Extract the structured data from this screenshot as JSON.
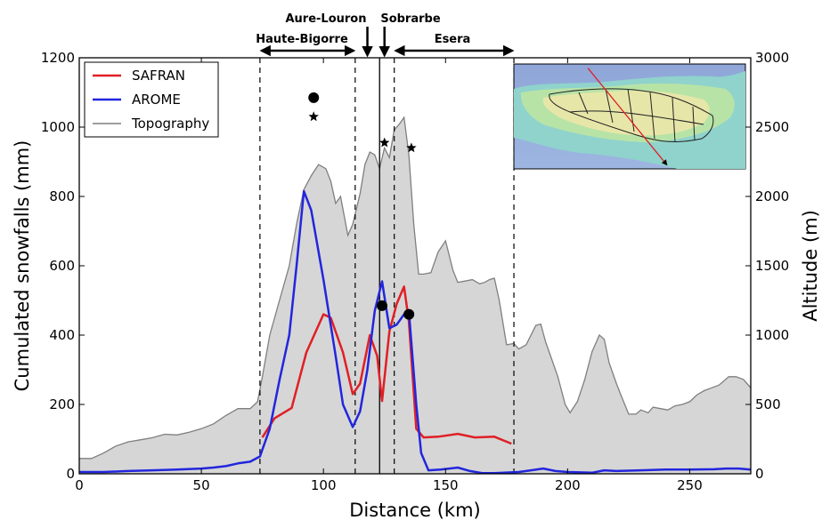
{
  "chart_data": {
    "type": "line",
    "xlabel": "Distance (km)",
    "ylabel": "Cumulated snowfalls (mm)",
    "y2label": "Altitude (m)",
    "xlim": [
      0,
      275
    ],
    "ylim": [
      0,
      1200
    ],
    "y2lim": [
      0,
      3000
    ],
    "xticks": [
      0,
      50,
      100,
      150,
      200,
      250
    ],
    "yticks": [
      0,
      200,
      400,
      600,
      800,
      1000,
      1200
    ],
    "y2ticks": [
      0,
      500,
      1000,
      1500,
      2000,
      2500,
      3000
    ],
    "legend_position": "top-left",
    "series": [
      {
        "name": "SAFRAN",
        "color": "#e01f26",
        "axis": "left",
        "x": [
          75,
          80,
          87,
          93,
          100,
          103,
          108,
          112,
          115,
          119,
          122,
          124,
          127,
          130,
          133,
          135,
          138,
          141,
          147,
          155,
          162,
          170,
          177
        ],
        "y": [
          105,
          160,
          190,
          350,
          460,
          450,
          350,
          230,
          260,
          400,
          340,
          210,
          410,
          490,
          540,
          440,
          130,
          105,
          107,
          115,
          105,
          107,
          87
        ]
      },
      {
        "name": "AROME",
        "color": "#2226dd",
        "axis": "left",
        "x": [
          0,
          10,
          20,
          30,
          40,
          50,
          55,
          60,
          65,
          70,
          74,
          78,
          82,
          86,
          89,
          92,
          95,
          100,
          105,
          108,
          112,
          115,
          118,
          121,
          124,
          127,
          130,
          133,
          135,
          138,
          140,
          143,
          148,
          155,
          160,
          165,
          170,
          180,
          185,
          190,
          195,
          200,
          210,
          215,
          220,
          230,
          240,
          250,
          260,
          265,
          270,
          275
        ],
        "y": [
          5,
          5,
          8,
          10,
          12,
          15,
          18,
          22,
          30,
          35,
          50,
          130,
          270,
          400,
          600,
          815,
          760,
          560,
          340,
          200,
          135,
          180,
          300,
          470,
          555,
          420,
          430,
          460,
          470,
          200,
          60,
          10,
          12,
          18,
          8,
          2,
          2,
          5,
          10,
          15,
          8,
          5,
          3,
          10,
          8,
          10,
          12,
          12,
          13,
          15,
          15,
          12
        ]
      },
      {
        "name": "Topography",
        "color": "#7f7f7f",
        "axis": "right",
        "x": [
          0,
          5,
          10,
          15,
          20,
          25,
          30,
          35,
          40,
          45,
          50,
          55,
          60,
          65,
          70,
          73,
          75,
          78,
          82,
          86,
          89,
          92,
          95,
          98,
          101,
          103,
          105,
          107,
          110,
          112,
          115,
          117,
          119,
          121,
          123,
          125,
          127,
          129,
          131,
          133,
          135,
          137,
          139,
          141,
          144,
          147,
          150,
          153,
          155,
          158,
          161,
          164,
          166,
          168,
          170,
          172,
          175,
          178,
          180,
          183,
          185,
          187,
          189,
          191,
          193,
          196,
          199,
          201,
          204,
          207,
          210,
          213,
          215,
          217,
          220,
          222,
          225,
          228,
          230,
          233,
          235,
          238,
          241,
          244,
          247,
          250,
          253,
          256,
          259,
          262,
          266,
          269,
          272,
          275
        ],
        "y": [
          110,
          110,
          150,
          200,
          230,
          245,
          260,
          285,
          280,
          300,
          325,
          360,
          420,
          470,
          470,
          520,
          700,
          1000,
          1250,
          1500,
          1800,
          2050,
          2150,
          2230,
          2200,
          2110,
          1950,
          2000,
          1720,
          1800,
          2020,
          2230,
          2320,
          2300,
          2200,
          2350,
          2280,
          2480,
          2520,
          2570,
          2300,
          1800,
          1440,
          1440,
          1450,
          1600,
          1680,
          1470,
          1380,
          1390,
          1400,
          1370,
          1380,
          1400,
          1410,
          1250,
          930,
          940,
          900,
          930,
          1000,
          1070,
          1080,
          950,
          850,
          700,
          500,
          440,
          520,
          680,
          880,
          1000,
          970,
          800,
          650,
          560,
          430,
          430,
          460,
          440,
          480,
          470,
          460,
          490,
          500,
          520,
          570,
          600,
          620,
          640,
          700,
          700,
          680,
          620
        ]
      }
    ],
    "observations": {
      "circles": [
        {
          "x": 96,
          "y": 1085
        },
        {
          "x": 124,
          "y": 485
        },
        {
          "x": 135,
          "y": 460
        }
      ],
      "stars": [
        {
          "x": 96,
          "y": 1030
        },
        {
          "x": 125,
          "y": 955
        },
        {
          "x": 136,
          "y": 940
        }
      ]
    },
    "dashed_lines_x": [
      74,
      113,
      129,
      178
    ],
    "solid_line_x": 123,
    "regions": [
      {
        "label": "Haute-Bigorre",
        "x_from": 74,
        "x_to": 113
      },
      {
        "label": "Aure-Louron",
        "x_arrow": 118
      },
      {
        "label": "Sobrarbe",
        "x_arrow": 125
      },
      {
        "label": "Esera",
        "x_from": 129,
        "x_to": 178
      }
    ],
    "inset_map": {
      "transect": {
        "from": [
          0.32,
          0.04
        ],
        "to": [
          0.66,
          0.96
        ]
      }
    }
  }
}
